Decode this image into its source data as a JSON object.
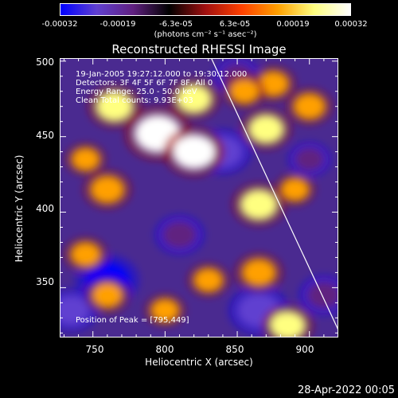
{
  "colorbar": {
    "ticks": [
      "-0.00032",
      "-0.00019",
      "-6.3e-05",
      "6.3e-05",
      "0.00019",
      "0.00032"
    ],
    "units": "(photons cm⁻² s⁻¹ asec⁻²)",
    "colors": [
      "#0000ff",
      "#6040d0",
      "#602080",
      "#000000",
      "#a01010",
      "#ff4000",
      "#ffa000",
      "#ffff80",
      "#ffffff"
    ]
  },
  "annotation": {
    "line1": "19-Jan-2005 19:27:12.000 to 19:30:12.000",
    "line2": "Detectors: 3F 4F 5F 6F 7F 8F, All 0",
    "line3": "Energy Range: 25.0 - 50.0 keV",
    "line4": "Clean     Total counts: 9.93E+03",
    "peak": "Position of Peak = [795,449]"
  },
  "timestamp": "28-Apr-2022 00:05",
  "chart_data": {
    "type": "heatmap",
    "title": "Reconstructed RHESSI Image",
    "xlabel": "Heliocentric X (arcsec)",
    "ylabel": "Heliocentric Y (arcsec)",
    "xlim": [
      727,
      920
    ],
    "ylim": [
      317,
      502
    ],
    "xticks": [
      750,
      800,
      850,
      900
    ],
    "yticks": [
      350,
      400,
      450,
      500
    ],
    "colorbar_range": [
      -0.00032,
      0.00032
    ],
    "peak_position": [
      795,
      449
    ],
    "limb_line": [
      [
        832,
        502
      ],
      [
        920,
        322
      ]
    ],
    "hotspots": [
      {
        "x": 795,
        "y": 452,
        "value": 0.00032
      },
      {
        "x": 820,
        "y": 440,
        "value": 0.00028
      },
      {
        "x": 765,
        "y": 470,
        "value": 0.00022
      },
      {
        "x": 820,
        "y": 475,
        "value": 0.0002
      },
      {
        "x": 760,
        "y": 415,
        "value": 0.00018
      },
      {
        "x": 865,
        "y": 405,
        "value": 0.00022
      },
      {
        "x": 870,
        "y": 455,
        "value": 0.0002
      },
      {
        "x": 900,
        "y": 470,
        "value": 0.00016
      },
      {
        "x": 875,
        "y": 485,
        "value": 0.00015
      },
      {
        "x": 855,
        "y": 480,
        "value": 0.00014
      },
      {
        "x": 865,
        "y": 360,
        "value": 0.00018
      },
      {
        "x": 885,
        "y": 325,
        "value": 0.0002
      },
      {
        "x": 760,
        "y": 345,
        "value": 0.00015
      },
      {
        "x": 745,
        "y": 372,
        "value": 0.00014
      },
      {
        "x": 830,
        "y": 355,
        "value": 0.00013
      },
      {
        "x": 800,
        "y": 335,
        "value": 0.00012
      },
      {
        "x": 890,
        "y": 415,
        "value": 0.00012
      },
      {
        "x": 745,
        "y": 435,
        "value": 0.00012
      }
    ],
    "coldspots": [
      {
        "x": 760,
        "y": 355,
        "value": -0.0003
      },
      {
        "x": 865,
        "y": 335,
        "value": -0.00028
      },
      {
        "x": 840,
        "y": 440,
        "value": -0.00025
      },
      {
        "x": 910,
        "y": 345,
        "value": -0.0002
      },
      {
        "x": 735,
        "y": 335,
        "value": -0.00022
      },
      {
        "x": 810,
        "y": 385,
        "value": -0.0002
      },
      {
        "x": 850,
        "y": 490,
        "value": -0.00018
      },
      {
        "x": 900,
        "y": 435,
        "value": -0.00015
      }
    ]
  }
}
